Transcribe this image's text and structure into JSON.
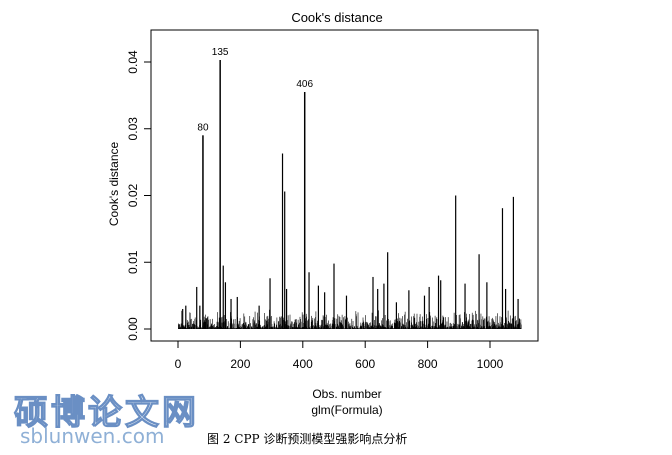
{
  "chart_data": {
    "type": "bar",
    "title": "Cook's distance",
    "xlabel": "Obs. number",
    "xsublabel": "glm(Formula)",
    "ylabel": "Cook's distance",
    "xlim": [
      0,
      1100
    ],
    "ylim": [
      0,
      0.04
    ],
    "x_ticks": [
      0,
      200,
      400,
      600,
      800,
      1000
    ],
    "y_ticks": [
      0,
      0.01,
      0.02,
      0.03,
      0.04
    ],
    "y_tick_labels": [
      "0.00",
      "0.01",
      "0.02",
      "0.03",
      "0.04"
    ],
    "labeled_points": [
      {
        "label": "80",
        "x": 80,
        "y": 0.029
      },
      {
        "label": "135",
        "x": 135,
        "y": 0.0403
      },
      {
        "label": "406",
        "x": 406,
        "y": 0.0355
      }
    ],
    "spikes": [
      [
        15,
        0.003
      ],
      [
        25,
        0.0035
      ],
      [
        60,
        0.0063
      ],
      [
        70,
        0.0035
      ],
      [
        80,
        0.029
      ],
      [
        135,
        0.0403
      ],
      [
        145,
        0.0095
      ],
      [
        152,
        0.007
      ],
      [
        170,
        0.0045
      ],
      [
        190,
        0.0048
      ],
      [
        260,
        0.0035
      ],
      [
        295,
        0.0076
      ],
      [
        335,
        0.0263
      ],
      [
        342,
        0.0206
      ],
      [
        348,
        0.006
      ],
      [
        406,
        0.0355
      ],
      [
        420,
        0.0085
      ],
      [
        450,
        0.0065
      ],
      [
        470,
        0.0055
      ],
      [
        500,
        0.0098
      ],
      [
        540,
        0.005
      ],
      [
        625,
        0.0078
      ],
      [
        640,
        0.006
      ],
      [
        660,
        0.0068
      ],
      [
        672,
        0.0115
      ],
      [
        700,
        0.004
      ],
      [
        740,
        0.0058
      ],
      [
        790,
        0.005
      ],
      [
        805,
        0.0063
      ],
      [
        835,
        0.008
      ],
      [
        842,
        0.0073
      ],
      [
        890,
        0.02
      ],
      [
        920,
        0.0068
      ],
      [
        965,
        0.0112
      ],
      [
        990,
        0.007
      ],
      [
        1040,
        0.0181
      ],
      [
        1050,
        0.006
      ],
      [
        1075,
        0.0198
      ],
      [
        1090,
        0.0045
      ]
    ],
    "background_max": 0.003,
    "n_obs": 1100
  },
  "watermark": {
    "chinese": "硕博论文网",
    "url": "sblunwen.com"
  },
  "caption": "图 2    CPP 诊断预测模型强影响点分析"
}
